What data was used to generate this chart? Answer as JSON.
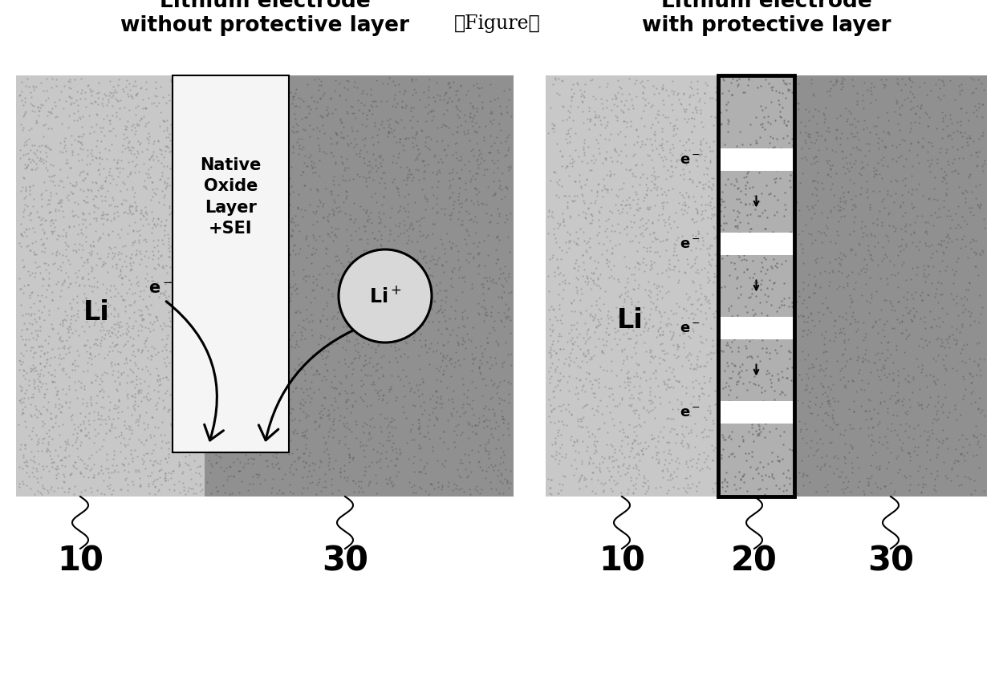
{
  "title": "【Figure】",
  "title_fontsize": 17,
  "left_heading": "Lithium electrode\nwithout protective layer",
  "right_heading": "Lithium electrode\nwith protective layer",
  "heading_fontsize": 19,
  "bg_color": "#ffffff",
  "left_li_color": "#c8c8c8",
  "electrolyte_left_color": "#909090",
  "native_oxide_color": "#f5f5f5",
  "right_li_color": "#c8c8c8",
  "prot_layer_color": "#b0b0b0",
  "electrolyte_right_color": "#909090",
  "label_fontsize": 30
}
